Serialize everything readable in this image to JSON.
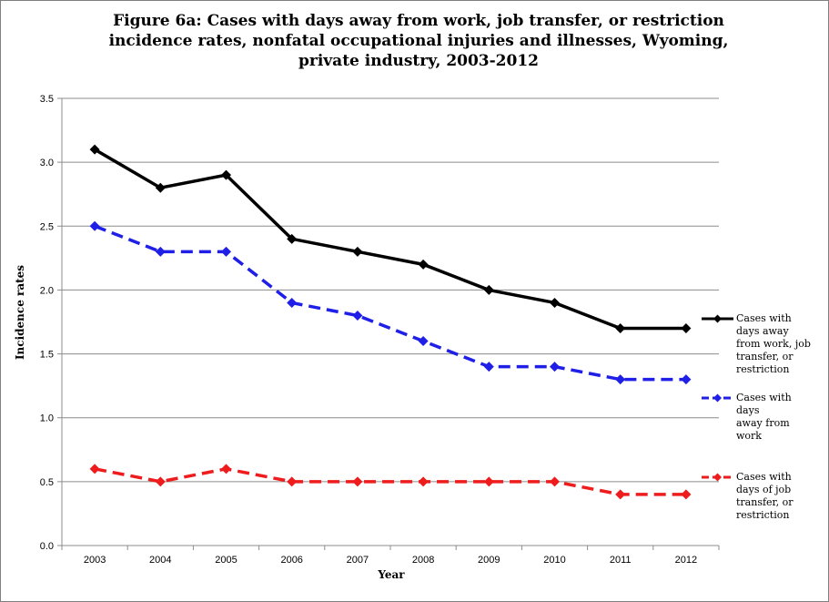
{
  "chart_data": {
    "type": "line",
    "title": "Figure 6a: Cases with days away from work, job transfer, or restriction\nincidence rates, nonfatal occupational injuries and illnesses, Wyoming,\nprivate industry, 2003-2012",
    "xlabel": "Year",
    "ylabel": "Incidence rates",
    "categories": [
      "2003",
      "2004",
      "2005",
      "2006",
      "2007",
      "2008",
      "2009",
      "2010",
      "2011",
      "2012"
    ],
    "ylim": [
      0,
      3.5
    ],
    "yticks": [
      "0.0",
      "0.5",
      "1.0",
      "1.5",
      "2.0",
      "2.5",
      "3.0",
      "3.5"
    ],
    "grid": "horizontal",
    "legend": "right",
    "series": [
      {
        "name": "Cases with\ndays away\n from work, job\n transfer, or\nrestriction",
        "values": [
          3.1,
          2.8,
          2.9,
          2.4,
          2.3,
          2.2,
          2.0,
          1.9,
          1.7,
          1.7
        ],
        "color": "#000000",
        "style": "solid"
      },
      {
        "name": "Cases with\ndays\naway from\nwork",
        "values": [
          2.5,
          2.3,
          2.3,
          1.9,
          1.8,
          1.6,
          1.4,
          1.4,
          1.3,
          1.3
        ],
        "color": "#1f1fe8",
        "style": "dashed"
      },
      {
        "name": "Cases with\ndays of job\n transfer, or\nrestriction",
        "values": [
          0.6,
          0.5,
          0.6,
          0.5,
          0.5,
          0.5,
          0.5,
          0.5,
          0.4,
          0.4
        ],
        "color": "#ee1c1c",
        "style": "dashed"
      }
    ]
  }
}
